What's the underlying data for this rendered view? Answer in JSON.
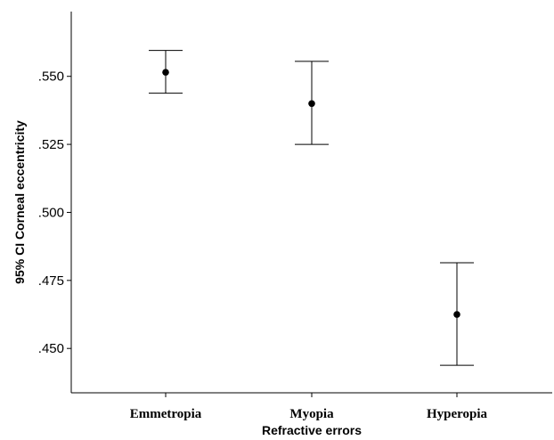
{
  "chart_data": {
    "type": "errorbar",
    "title": "",
    "xlabel": "Refractive errors",
    "ylabel": "95% CI Corneal eccentricity",
    "categories": [
      "Emmetropia",
      "Myopia",
      "Hyperopia"
    ],
    "mean": [
      0.5515,
      0.54,
      0.4625
    ],
    "ci_lower": [
      0.5438,
      0.525,
      0.4438
    ],
    "ci_upper": [
      0.5595,
      0.5555,
      0.4815
    ],
    "ylim": [
      0.4337,
      0.5738
    ],
    "yticks": [
      0.45,
      0.475,
      0.5,
      0.525,
      0.55
    ],
    "ytick_labels": [
      ".450",
      ".475",
      ".500",
      ".525",
      ".550"
    ],
    "grid": false,
    "colors": {
      "line": "#000000",
      "marker": "#000000",
      "background": "#ffffff"
    }
  }
}
